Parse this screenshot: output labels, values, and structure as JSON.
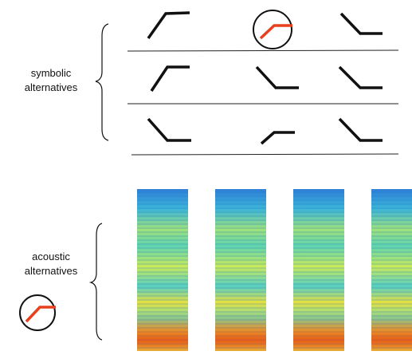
{
  "groups": [
    {
      "label_lines": [
        "symbolic",
        "alternatives"
      ]
    },
    {
      "label_lines": [
        "acoustic",
        "alternatives"
      ]
    }
  ]
}
